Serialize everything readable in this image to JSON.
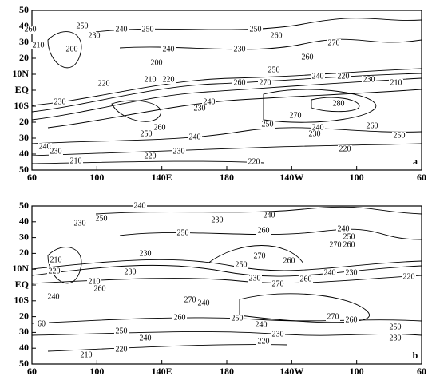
{
  "panels": [
    {
      "label": "a",
      "x_tick_labels": [
        "60",
        "100",
        "140E",
        "180",
        "140W",
        "100",
        "60"
      ],
      "y_tick_labels": [
        "50",
        "40",
        "30",
        "20",
        "10N",
        "EQ",
        "10S",
        "20",
        "30",
        "40",
        "50"
      ],
      "contour_labels": [
        "260",
        "250",
        "240",
        "250",
        "230",
        "210",
        "200",
        "240",
        "230",
        "250",
        "260",
        "270",
        "260",
        "250",
        "270",
        "240",
        "220",
        "230",
        "210",
        "220",
        "210",
        "220",
        "200",
        "260",
        "230",
        "240",
        "230",
        "280",
        "270",
        "260",
        "250",
        "240",
        "250",
        "240",
        "230",
        "260",
        "250",
        "240",
        "230",
        "230",
        "220",
        "210",
        "220",
        "220"
      ]
    },
    {
      "label": "b",
      "x_tick_labels": [
        "60",
        "100",
        "140E",
        "180",
        "140W",
        "100",
        "60"
      ],
      "y_tick_labels": [
        "50",
        "40",
        "30",
        "20",
        "10N",
        "EQ",
        "10S",
        "20",
        "30",
        "40",
        "50"
      ],
      "contour_labels": [
        "250",
        "230",
        "240",
        "230",
        "240",
        "250",
        "260",
        "270",
        "260",
        "230",
        "250",
        "230",
        "270",
        "260",
        "240",
        "230",
        "220",
        "270",
        "260",
        "250",
        "240",
        "210",
        "220",
        "210",
        "240",
        "260",
        "230",
        "270",
        "240",
        "260",
        "250",
        "240",
        "230",
        "270",
        "260",
        "250",
        "230",
        "60",
        "250",
        "240",
        "220",
        "210",
        "220"
      ]
    }
  ]
}
